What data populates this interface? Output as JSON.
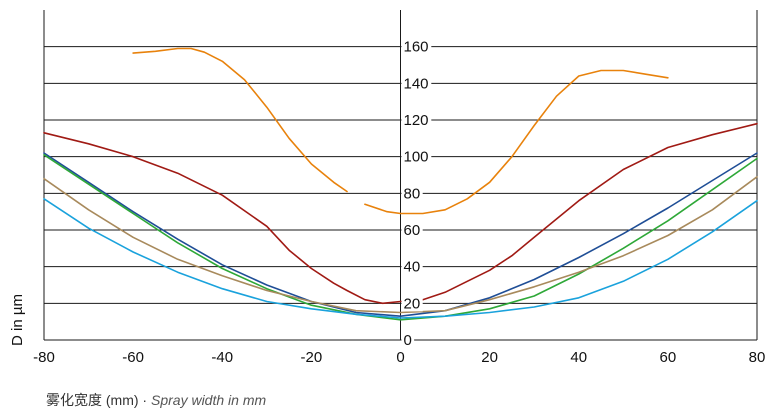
{
  "chart_data": {
    "type": "line",
    "ylabel": "D in µm",
    "xlabel_cn": "雾化宽度 (mm)",
    "xlabel_sep": " · ",
    "xlabel_en": "Spray width in mm",
    "xlim": [
      -80,
      80
    ],
    "ylim": [
      0,
      180
    ],
    "x_ticks": [
      -80,
      -60,
      -40,
      -20,
      0,
      20,
      40,
      60,
      80
    ],
    "x_tick_labels": [
      "-80",
      "-60",
      "-40",
      "-20",
      "0",
      "20",
      "40",
      "60",
      "80"
    ],
    "y_ticks": [
      0,
      20,
      40,
      60,
      80,
      100,
      120,
      140,
      160
    ],
    "y_tick_labels": [
      "0",
      "20",
      "40",
      "60",
      "80",
      "100",
      "120",
      "140",
      "160"
    ],
    "grid": "horizontal",
    "series": [
      {
        "color": "#e8820c",
        "segments": [
          [
            [
              -60,
              156.5
            ],
            [
              -55,
              157.5
            ],
            [
              -50,
              159
            ],
            [
              -47,
              159
            ],
            [
              -44,
              157
            ],
            [
              -40,
              152
            ],
            [
              -35,
              142
            ],
            [
              -30,
              127
            ],
            [
              -25,
              110
            ],
            [
              -20,
              96
            ],
            [
              -15,
              86
            ],
            [
              -12,
              81
            ]
          ],
          [
            [
              -8,
              74
            ],
            [
              -3,
              70
            ],
            [
              0,
              69
            ],
            [
              5,
              69
            ],
            [
              10,
              71
            ],
            [
              15,
              77
            ],
            [
              20,
              86
            ],
            [
              25,
              100
            ],
            [
              30,
              117
            ],
            [
              35,
              133
            ],
            [
              40,
              144
            ],
            [
              45,
              147
            ],
            [
              50,
              147
            ],
            [
              55,
              145
            ],
            [
              60,
              143
            ]
          ]
        ]
      },
      {
        "color": "#a01a14",
        "points": [
          [
            -80,
            113
          ],
          [
            -70,
            107
          ],
          [
            -60,
            100
          ],
          [
            -50,
            91
          ],
          [
            -40,
            79
          ],
          [
            -30,
            62
          ],
          [
            -25,
            49
          ],
          [
            -20,
            39
          ],
          [
            -15,
            31
          ],
          [
            -12,
            27
          ],
          [
            -8,
            22
          ],
          [
            -4,
            20
          ],
          [
            0,
            21
          ],
          [
            5,
            22
          ],
          [
            10,
            26
          ],
          [
            15,
            32
          ],
          [
            20,
            38
          ],
          [
            25,
            46
          ],
          [
            30,
            56
          ],
          [
            40,
            76
          ],
          [
            50,
            93
          ],
          [
            60,
            105
          ],
          [
            70,
            112
          ],
          [
            80,
            118
          ]
        ]
      },
      {
        "color": "#1f4e96",
        "points": [
          [
            -80,
            102
          ],
          [
            -70,
            86
          ],
          [
            -60,
            70
          ],
          [
            -50,
            55
          ],
          [
            -40,
            41
          ],
          [
            -30,
            30
          ],
          [
            -20,
            21
          ],
          [
            -10,
            15
          ],
          [
            0,
            13
          ],
          [
            10,
            16
          ],
          [
            20,
            23
          ],
          [
            30,
            33
          ],
          [
            40,
            45
          ],
          [
            50,
            58
          ],
          [
            60,
            72
          ],
          [
            70,
            87
          ],
          [
            80,
            102
          ]
        ]
      },
      {
        "color": "#2ea838",
        "points": [
          [
            -80,
            101
          ],
          [
            -70,
            85
          ],
          [
            -60,
            69
          ],
          [
            -50,
            53
          ],
          [
            -40,
            39
          ],
          [
            -30,
            28
          ],
          [
            -20,
            19
          ],
          [
            -10,
            14
          ],
          [
            0,
            11
          ],
          [
            10,
            13
          ],
          [
            20,
            17
          ],
          [
            30,
            24
          ],
          [
            40,
            36
          ],
          [
            50,
            50
          ],
          [
            60,
            65
          ],
          [
            70,
            82
          ],
          [
            80,
            99
          ]
        ]
      },
      {
        "color": "#a88a5c",
        "points": [
          [
            -80,
            88
          ],
          [
            -70,
            71
          ],
          [
            -60,
            56
          ],
          [
            -50,
            44
          ],
          [
            -40,
            35
          ],
          [
            -30,
            27
          ],
          [
            -20,
            21
          ],
          [
            -10,
            16
          ],
          [
            0,
            15
          ],
          [
            10,
            16
          ],
          [
            20,
            22
          ],
          [
            30,
            29
          ],
          [
            40,
            37
          ],
          [
            50,
            46
          ],
          [
            60,
            57
          ],
          [
            70,
            71
          ],
          [
            80,
            89
          ]
        ]
      },
      {
        "color": "#1aa2dc",
        "points": [
          [
            -80,
            77
          ],
          [
            -70,
            61
          ],
          [
            -60,
            48
          ],
          [
            -50,
            37
          ],
          [
            -40,
            28
          ],
          [
            -30,
            21
          ],
          [
            -20,
            17
          ],
          [
            -10,
            14
          ],
          [
            0,
            12
          ],
          [
            10,
            13
          ],
          [
            20,
            15
          ],
          [
            30,
            18
          ],
          [
            40,
            23
          ],
          [
            50,
            32
          ],
          [
            60,
            44
          ],
          [
            70,
            59
          ],
          [
            80,
            76
          ]
        ]
      }
    ]
  }
}
